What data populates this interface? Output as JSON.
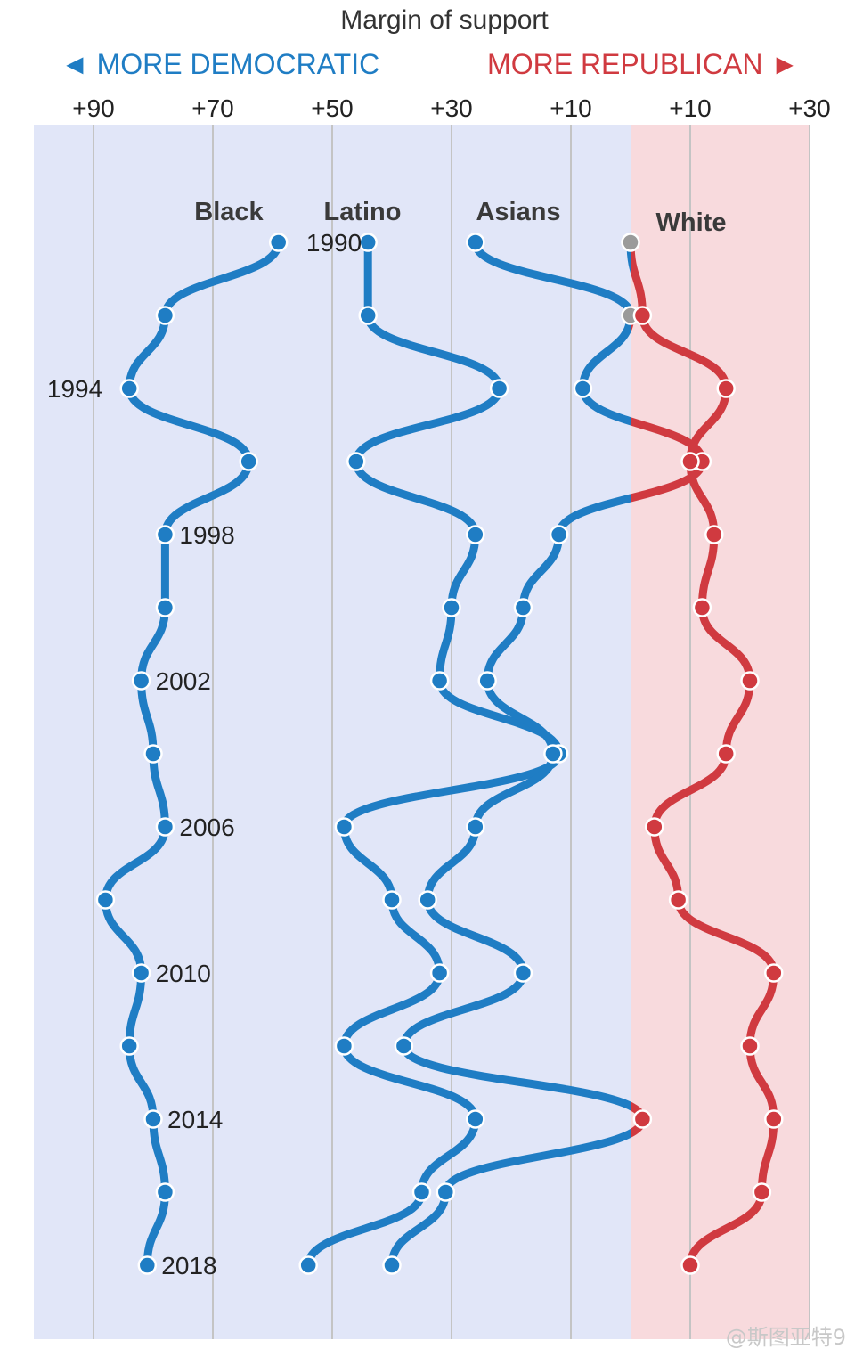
{
  "chart_data": {
    "type": "line",
    "title": "Margin of support",
    "direction_labels": {
      "left": "◄ MORE DEMOCRATIC",
      "right": "MORE REPUBLICAN ►"
    },
    "x_ticks": [
      {
        "label": "+90",
        "value": -90
      },
      {
        "label": "+70",
        "value": -70
      },
      {
        "label": "+50",
        "value": -50
      },
      {
        "label": "+30",
        "value": -30
      },
      {
        "label": "+10",
        "value": -10
      },
      {
        "label": "+10",
        "value": 10
      },
      {
        "label": "+30",
        "value": 30
      }
    ],
    "xlim": [
      -100,
      30
    ],
    "year_labels": [
      {
        "year": 1990,
        "label": "1990"
      },
      {
        "year": 1994,
        "label": "1994"
      },
      {
        "year": 1998,
        "label": "1998"
      },
      {
        "year": 2002,
        "label": "2002"
      },
      {
        "year": 2006,
        "label": "2006"
      },
      {
        "year": 2010,
        "label": "2010"
      },
      {
        "year": 2014,
        "label": "2014"
      },
      {
        "year": 2018,
        "label": "2018"
      }
    ],
    "years": [
      1990,
      1992,
      1994,
      1996,
      1998,
      2000,
      2002,
      2004,
      2006,
      2008,
      2010,
      2012,
      2014,
      2016,
      2018
    ],
    "colors": {
      "democratic": "#1f7dc4",
      "republican": "#d03a40",
      "neutral": "#9a9a9a",
      "dem_bg": "#e1e6f8",
      "rep_bg": "#f8dadd",
      "grid": "#c4c4c4"
    },
    "series": [
      {
        "name": "Black",
        "values": [
          -59,
          -78,
          -84,
          -64,
          -78,
          -78,
          -82,
          -80,
          -78,
          -88,
          -82,
          -84,
          -80,
          -78,
          -81
        ]
      },
      {
        "name": "Latino",
        "values": [
          -44,
          -44,
          -22,
          -46,
          -26,
          -30,
          -32,
          -12,
          -48,
          -40,
          -32,
          -48,
          -26,
          -35,
          -54
        ]
      },
      {
        "name": "Asians",
        "values": [
          -26,
          0,
          -8,
          12,
          -12,
          -18,
          -24,
          -13,
          -26,
          -34,
          -18,
          -38,
          2,
          -31,
          -40
        ]
      },
      {
        "name": "White",
        "values": [
          0,
          2,
          16,
          10,
          14,
          12,
          20,
          16,
          4,
          8,
          24,
          20,
          24,
          22,
          10
        ]
      }
    ]
  },
  "watermark": "@斯图亚特9"
}
